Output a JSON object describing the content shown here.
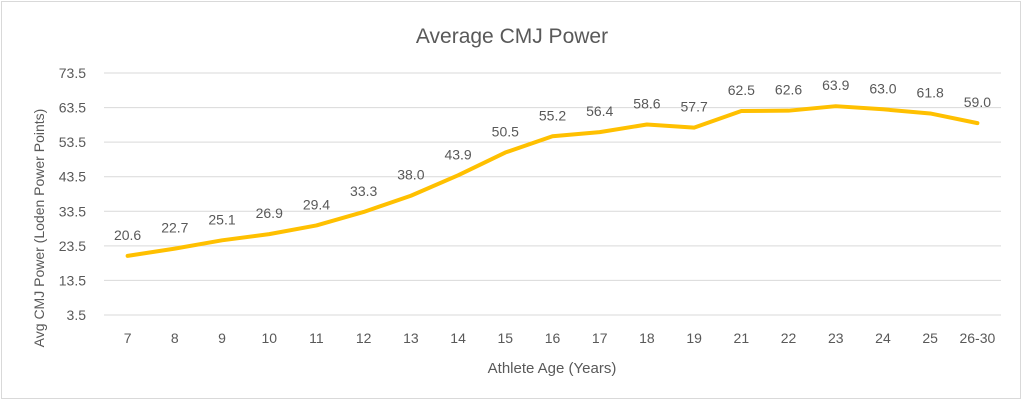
{
  "chart_data": {
    "type": "line",
    "title": "Average CMJ Power",
    "xlabel": "Athlete Age (Years)",
    "ylabel": "Avg CMJ Power (Loden Power Points)",
    "categories": [
      "7",
      "8",
      "9",
      "10",
      "11",
      "12",
      "13",
      "14",
      "15",
      "16",
      "17",
      "18",
      "19",
      "21",
      "22",
      "23",
      "24",
      "25",
      "26-30"
    ],
    "series": [
      {
        "values": [
          20.6,
          22.7,
          25.1,
          26.9,
          29.4,
          33.3,
          38.0,
          43.9,
          50.5,
          55.2,
          56.4,
          58.6,
          57.7,
          62.5,
          62.6,
          63.9,
          63.0,
          61.8,
          59.0
        ],
        "data_labels": [
          "20.6",
          "22.7",
          "25.1",
          "26.9",
          "29.4",
          "33.3",
          "38.0",
          "43.9",
          "50.5",
          "55.2",
          "56.4",
          "58.6",
          "57.7",
          "62.5",
          "62.6",
          "63.9",
          "63.0",
          "61.8",
          "59.0"
        ]
      }
    ],
    "yticks": [
      "3.5",
      "13.5",
      "23.5",
      "33.5",
      "43.5",
      "53.5",
      "63.5",
      "73.5"
    ],
    "ylim": [
      3.5,
      73.5
    ],
    "grid": true,
    "legend": "none",
    "colors": {
      "line": "#ffc000",
      "grid": "#d9d9d9",
      "text": "#595959",
      "axis": "#d9d9d9"
    }
  }
}
